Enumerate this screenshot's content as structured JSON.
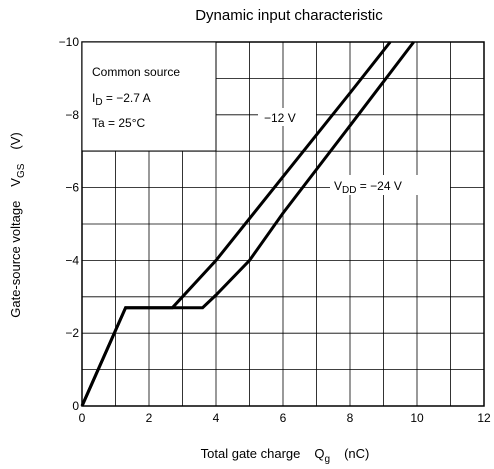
{
  "chart_data": {
    "type": "line",
    "title": "Dynamic input characteristic",
    "xlabel": "Total gate charge",
    "xlabel_symbol": "Q",
    "xlabel_symbol_sub": "g",
    "xlabel_unit": "(nC)",
    "ylabel": "Gate-source voltage",
    "ylabel_symbol": "V",
    "ylabel_symbol_sub": "GS",
    "ylabel_unit": "(V)",
    "xlim": [
      0,
      12
    ],
    "ylim": [
      0,
      -10
    ],
    "x_ticks": [
      "0",
      "2",
      "4",
      "6",
      "8",
      "10",
      "12"
    ],
    "y_ticks": [
      "0",
      "−2",
      "−4",
      "−6",
      "−8",
      "−10"
    ],
    "grid": true,
    "conditions": {
      "line1": "Common source",
      "line2_main": "I",
      "line2_sub": "D",
      "line2_rest": " = −2.7 A",
      "line3": "Ta = 25°C"
    },
    "series": [
      {
        "name": "−12 V",
        "x": [
          0,
          1.3,
          2.7,
          4.0,
          6.0,
          8.0,
          9.2
        ],
        "y": [
          0,
          -2.7,
          -2.7,
          -4.0,
          -6.3,
          -8.6,
          -10
        ]
      },
      {
        "name_main": "V",
        "name_sub": "DD",
        "name_rest": " = −24 V",
        "x": [
          0,
          1.3,
          3.6,
          4.0,
          5.0,
          6.0,
          8.0,
          9.9
        ],
        "y": [
          0,
          -2.7,
          -2.7,
          -3.05,
          -4.0,
          -5.3,
          -7.7,
          -10
        ]
      }
    ]
  }
}
